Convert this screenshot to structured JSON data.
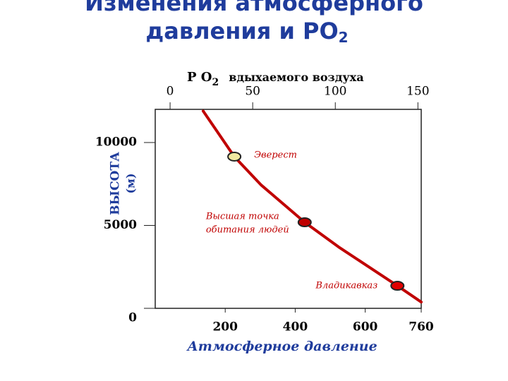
{
  "chart_data": {
    "type": "line",
    "title": [
      "Изменения  атмосферного",
      "давления  и  PO"
    ],
    "title_subscript": "2",
    "x_label": "Атмосферное  давление",
    "y_label": [
      "ВЫСОТА",
      "(м)"
    ],
    "x2_label": [
      "P O",
      "2",
      "вдыхаемого воздуха"
    ],
    "x": [
      137,
      226,
      302,
      427,
      524,
      692,
      760
    ],
    "series": [
      {
        "color": "#c00000",
        "values": [
          11900,
          9150,
          7450,
          5190,
          3700,
          1360,
          380
        ]
      }
    ],
    "xlim": [
      0,
      760
    ],
    "xticks": [
      200,
      400,
      600,
      760
    ],
    "ylim": [
      0,
      12000
    ],
    "yticks": [
      0,
      5000,
      10000
    ],
    "x2lim": [
      -9,
      152
    ],
    "x2ticks": [
      0,
      50,
      100,
      150
    ],
    "annotations": [
      {
        "x": 226,
        "y": 9150,
        "label": [
          "Эверест"
        ],
        "color": "#f0e8a0"
      },
      {
        "x": 427,
        "y": 5190,
        "label": [
          "Высшая точка",
          "обитания людей"
        ],
        "color": "#c00000"
      },
      {
        "x": 692,
        "y": 1360,
        "label": [
          "Владикавказ"
        ],
        "color": "#e00000"
      }
    ]
  }
}
